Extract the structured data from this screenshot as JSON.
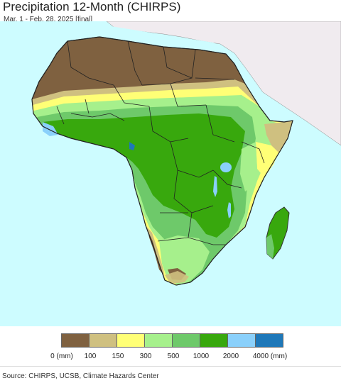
{
  "header": {
    "title": "Precipitation 12-Month (CHIRPS)",
    "subtitle": "Mar. 1 - Feb. 28, 2025 [final]"
  },
  "map": {
    "region": "Africa",
    "ocean_color": "#cdfcff",
    "outside_land_color": "#f0ebef"
  },
  "legend": {
    "colors": [
      "#7f6140",
      "#cfc080",
      "#ffff76",
      "#a6f08c",
      "#6ec96a",
      "#38a80d",
      "#8ad0fb",
      "#1e78b9"
    ],
    "labels": [
      "0 (mm)",
      "100",
      "150",
      "300",
      "500",
      "1000",
      "2000",
      "4000 (mm)"
    ]
  },
  "footer": {
    "source": "Source: CHIRPS, UCSB, Climate Hazards Center"
  }
}
